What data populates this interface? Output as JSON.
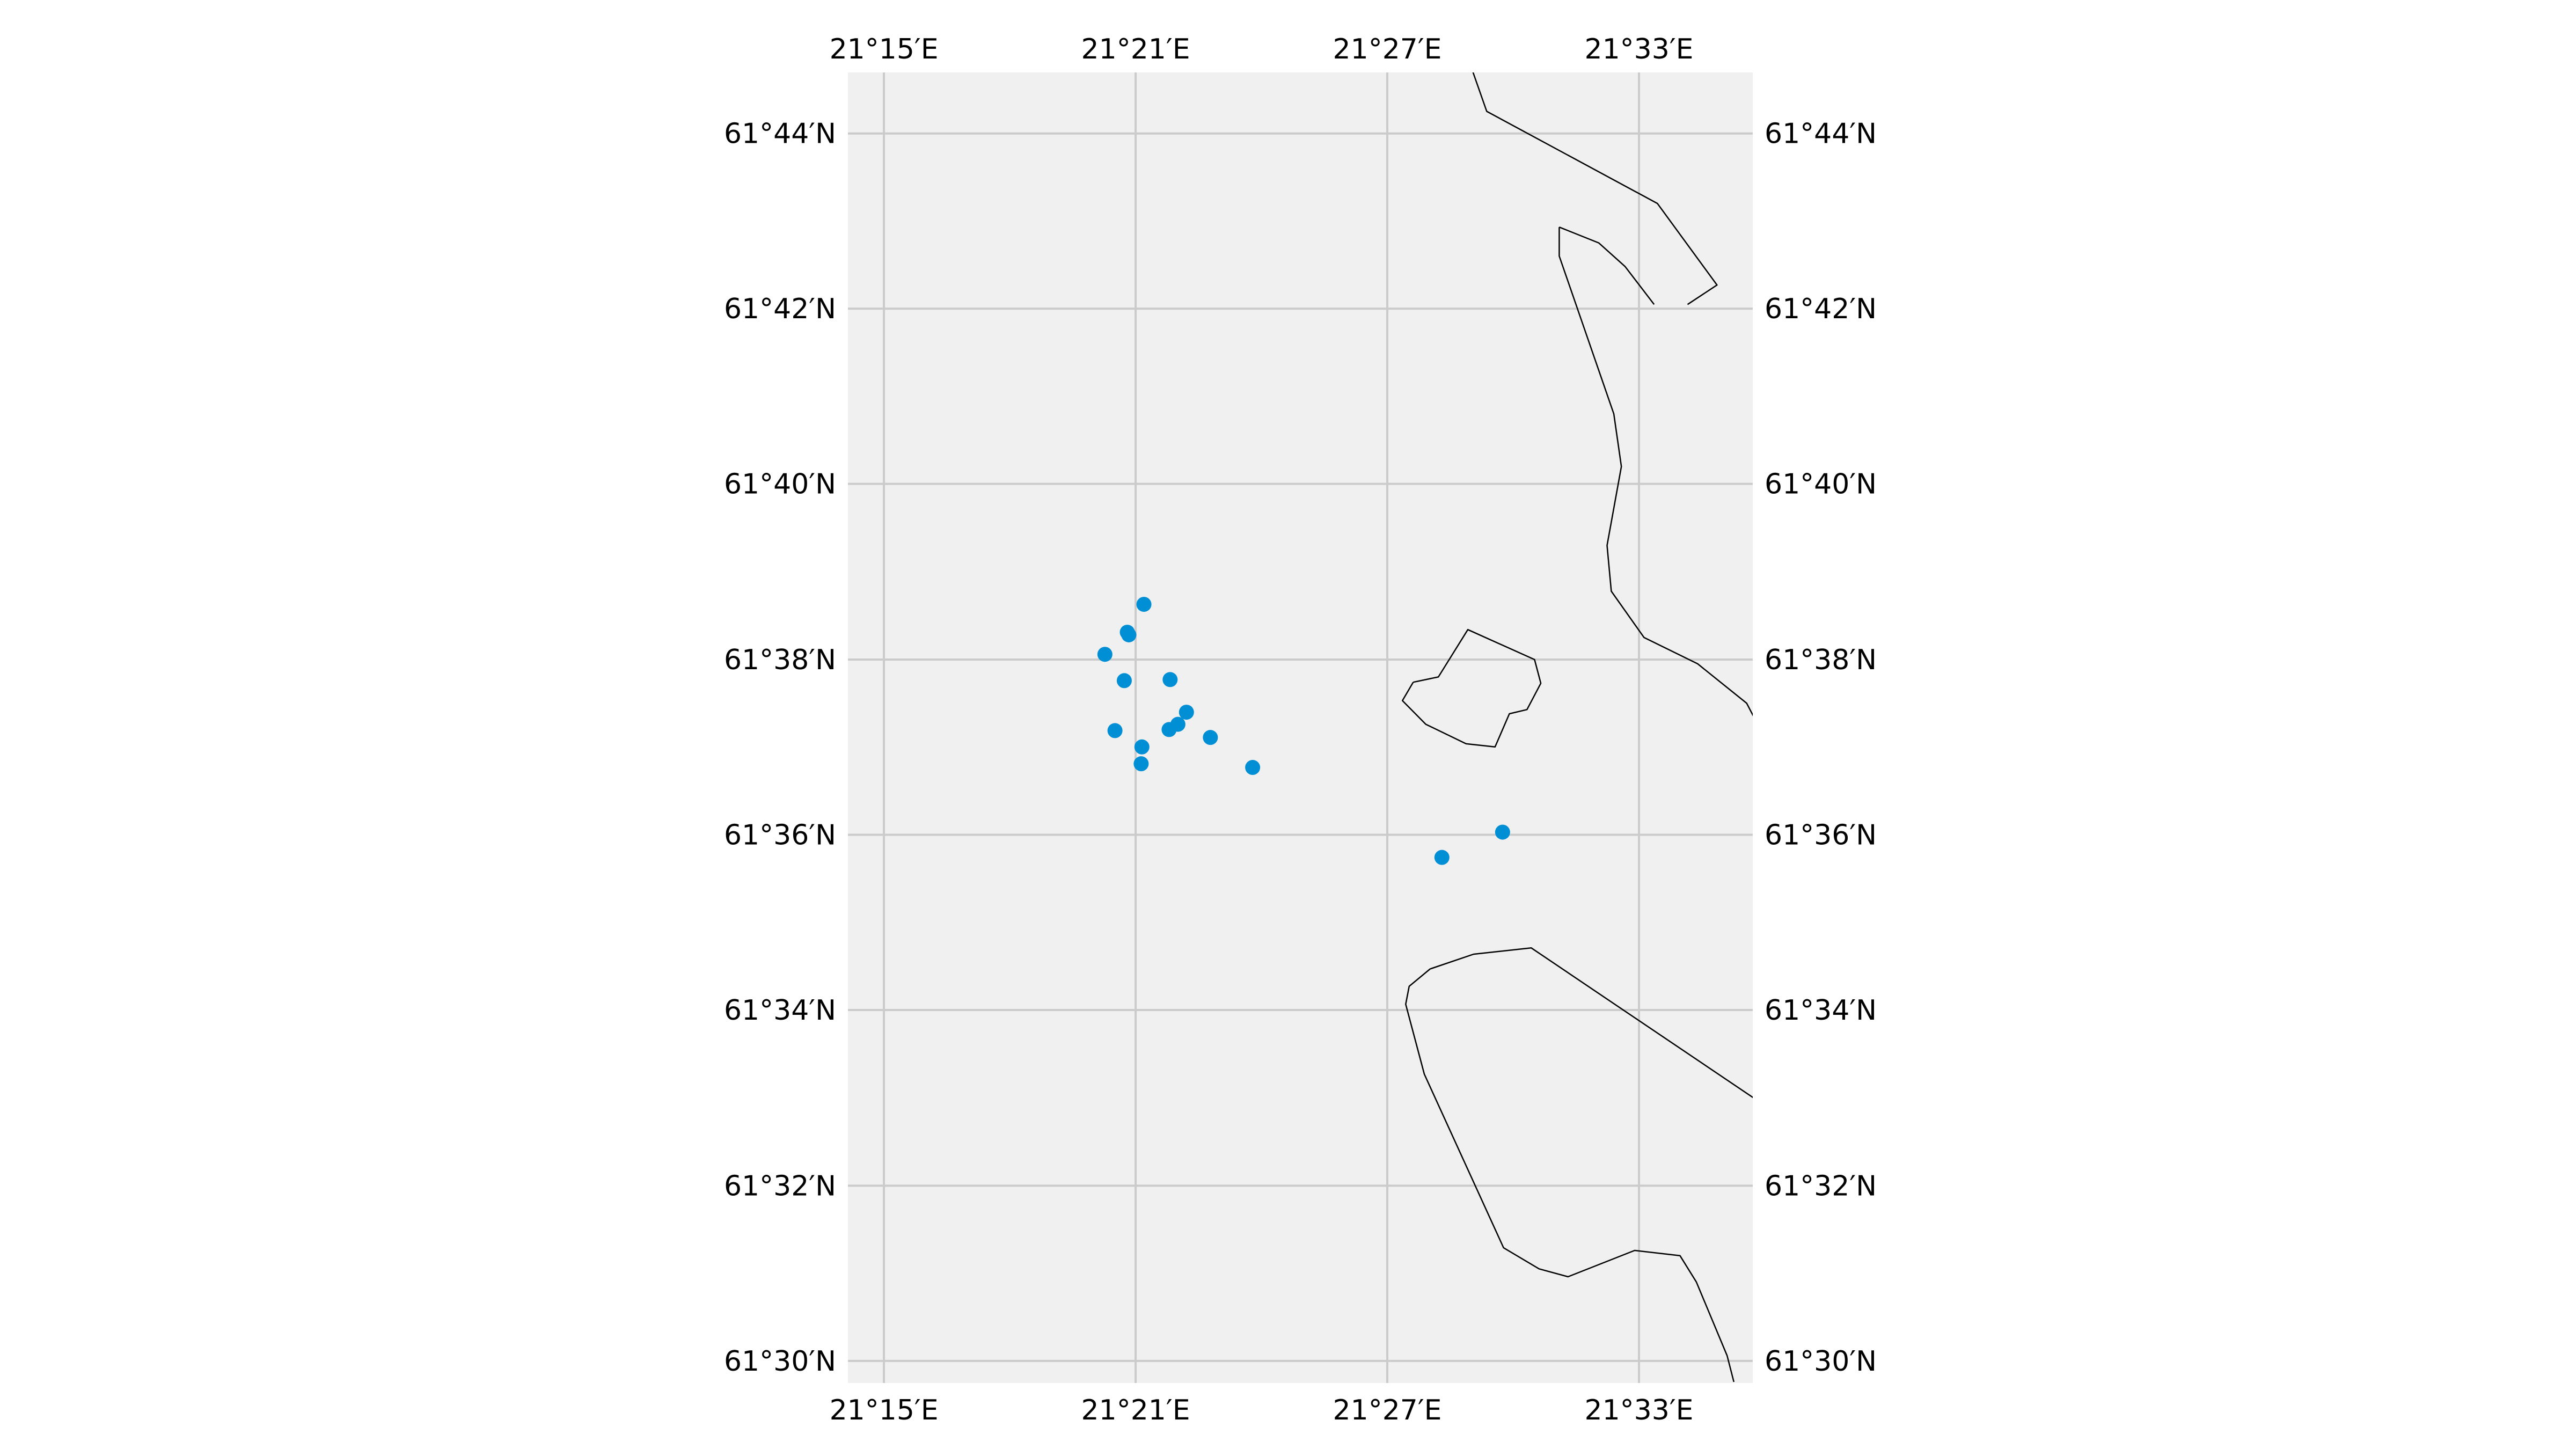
{
  "map": {
    "axes": {
      "lon_ticks": [
        {
          "value": 21.25,
          "label": "21°15′E"
        },
        {
          "value": 21.35,
          "label": "21°21′E"
        },
        {
          "value": 21.45,
          "label": "21°27′E"
        },
        {
          "value": 21.55,
          "label": "21°33′E"
        }
      ],
      "lat_ticks": [
        {
          "value": 61.5,
          "label": "61°30′N"
        },
        {
          "value": 61.5333,
          "label": "61°32′N"
        },
        {
          "value": 61.5667,
          "label": "61°34′N"
        },
        {
          "value": 61.6,
          "label": "61°36′N"
        },
        {
          "value": 61.6333,
          "label": "61°38′N"
        },
        {
          "value": 61.6667,
          "label": "61°40′N"
        },
        {
          "value": 61.7,
          "label": "61°42′N"
        },
        {
          "value": 61.7333,
          "label": "61°44′N"
        }
      ],
      "lon_range": [
        21.2357,
        21.5952
      ],
      "lat_range": [
        61.4958,
        61.7449
      ],
      "grid": true
    },
    "colors": {
      "background": "#f0f0f0",
      "grid": "#cbcbcb",
      "coastline": "#000000",
      "points": "#008fd5"
    },
    "points": [
      {
        "lon": 21.3533,
        "lat": 61.6438
      },
      {
        "lon": 21.3467,
        "lat": 61.6385
      },
      {
        "lon": 21.3473,
        "lat": 61.638
      },
      {
        "lon": 21.3378,
        "lat": 61.6343
      },
      {
        "lon": 21.3455,
        "lat": 61.6293
      },
      {
        "lon": 21.3637,
        "lat": 61.6295
      },
      {
        "lon": 21.3702,
        "lat": 61.6233
      },
      {
        "lon": 21.3668,
        "lat": 61.621
      },
      {
        "lon": 21.3633,
        "lat": 61.62
      },
      {
        "lon": 21.3418,
        "lat": 61.6198
      },
      {
        "lon": 21.3797,
        "lat": 61.6185
      },
      {
        "lon": 21.3525,
        "lat": 61.6167
      },
      {
        "lon": 21.3522,
        "lat": 61.6135
      },
      {
        "lon": 21.3965,
        "lat": 61.6128
      },
      {
        "lon": 21.4717,
        "lat": 61.5957
      },
      {
        "lon": 21.4958,
        "lat": 61.6005
      }
    ],
    "coastlines": [
      [
        [
          21.484,
          61.745
        ],
        [
          21.4895,
          61.7375
        ],
        [
          21.5573,
          61.72
        ],
        [
          21.581,
          61.7045
        ],
        [
          21.5693,
          61.7008
        ]
      ],
      [
        [
          21.5183,
          61.7155
        ],
        [
          21.5183,
          61.71
        ],
        [
          21.54,
          61.68
        ],
        [
          21.543,
          61.67
        ],
        [
          21.5373,
          61.655
        ],
        [
          21.539,
          61.6463
        ],
        [
          21.552,
          61.6375
        ],
        [
          21.5733,
          61.6325
        ],
        [
          21.5928,
          61.625
        ],
        [
          21.5955,
          61.6225
        ]
      ],
      [
        [
          21.5183,
          61.7155
        ],
        [
          21.534,
          61.7125
        ],
        [
          21.5445,
          61.708
        ],
        [
          21.556,
          61.7008
        ]
      ],
      [
        [
          21.4603,
          61.629
        ],
        [
          21.4703,
          61.63
        ],
        [
          21.482,
          61.639
        ],
        [
          21.5085,
          61.6333
        ],
        [
          21.511,
          61.6288
        ],
        [
          21.5055,
          61.6238
        ],
        [
          21.4985,
          61.623
        ],
        [
          21.4928,
          61.6167
        ],
        [
          21.4813,
          61.6173
        ],
        [
          21.4653,
          61.621
        ],
        [
          21.456,
          61.6255
        ],
        [
          21.4603,
          61.629
        ]
      ],
      [
        [
          21.5955,
          61.55
        ],
        [
          21.5072,
          61.5785
        ],
        [
          21.4843,
          61.5773
        ],
        [
          21.467,
          61.5745
        ],
        [
          21.4587,
          61.5712
        ],
        [
          21.4573,
          61.5678
        ],
        [
          21.4647,
          61.5545
        ],
        [
          21.4962,
          61.5215
        ],
        [
          21.5103,
          61.5175
        ],
        [
          21.5218,
          61.516
        ],
        [
          21.5483,
          61.521
        ],
        [
          21.5663,
          61.52
        ],
        [
          21.5728,
          61.515
        ],
        [
          21.585,
          61.501
        ],
        [
          21.5877,
          61.496
        ]
      ]
    ]
  }
}
